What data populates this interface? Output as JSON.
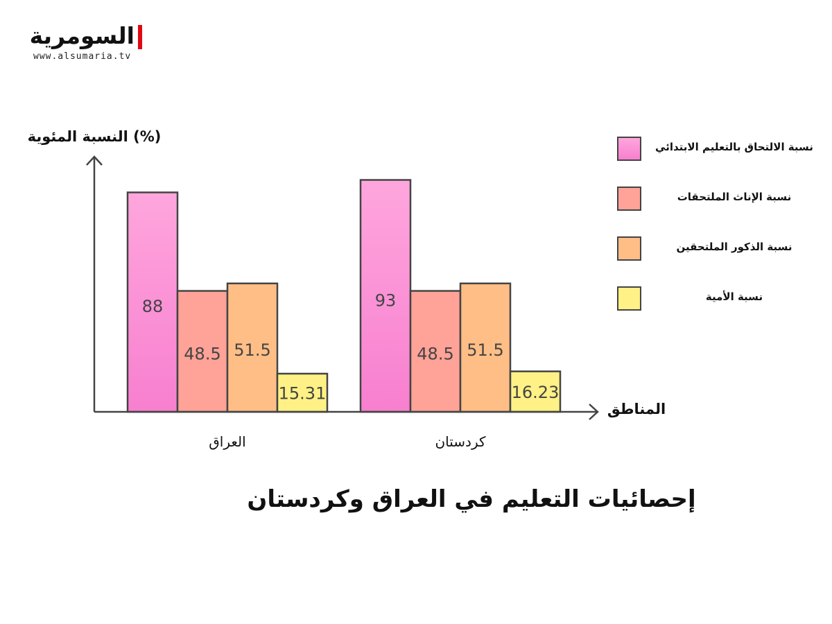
{
  "logo": {
    "name": "السومرية",
    "url": "www.alsumaria.tv",
    "accent_color": "#e30613"
  },
  "chart_data": {
    "type": "bar",
    "title": "إحصائيات التعليم في العراق وكردستان",
    "xlabel": "المناطق",
    "ylabel": "(%) النسبة المئوية",
    "categories": [
      "العراق",
      "كردستان"
    ],
    "series": [
      {
        "name": "نسبة الالتحاق بالتعليم الابتدائي",
        "values": [
          88,
          93
        ],
        "color": "#f77fcf",
        "color_light": "#ffa6dd"
      },
      {
        "name": "نسبة الإناث الملتحقات",
        "values": [
          48.5,
          48.5
        ],
        "color": "#ffa298",
        "color_light": "#ffa298"
      },
      {
        "name": "نسبة الذكور الملتحقين",
        "values": [
          51.5,
          51.5
        ],
        "color": "#ffbe86",
        "color_light": "#ffbe86"
      },
      {
        "name": "نسبة الأمية",
        "values": [
          15.31,
          16.23
        ],
        "color": "#fff185",
        "color_light": "#fff185"
      }
    ],
    "ylim": [
      0,
      100
    ],
    "grid": false,
    "legend_position": "right"
  }
}
